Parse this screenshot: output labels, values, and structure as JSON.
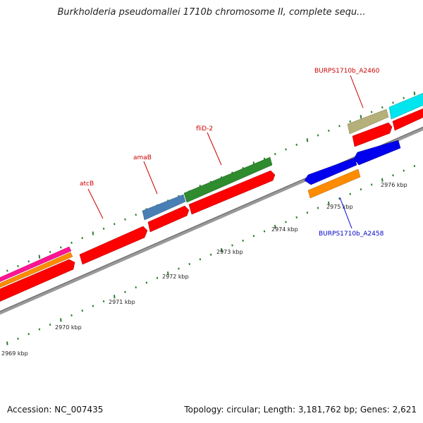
{
  "title": "Burkholderia pseudomallei 1710b chromosome II, complete sequ...",
  "footer": {
    "accession": "Accession: NC_007435",
    "summary": "Topology: circular; Length: 3,181,762 bp; Genes: 2,621"
  },
  "scale": {
    "tick_labels": [
      "2969 kbp",
      "2970 kbp",
      "2971 kbp",
      "2972 kbp",
      "2973 kbp",
      "2974 kbp",
      "2975 kbp",
      "2976 kbp"
    ],
    "tick_positions_kbp": [
      2969,
      2970,
      2971,
      2972,
      2973,
      2974,
      2975,
      2976
    ]
  },
  "gene_labels": [
    {
      "name": "atcB",
      "color": "#cc0000"
    },
    {
      "name": "amaB",
      "color": "#cc0000"
    },
    {
      "name": "fliD-2",
      "color": "#cc0000"
    },
    {
      "name": "BURPS1710b_A2460",
      "color": "#cc0000"
    },
    {
      "name": "BURPS1710b_A2458",
      "color": "#0000cc"
    }
  ],
  "colors": {
    "backbone": "#888888",
    "cds": "#ff0000",
    "tick": "#2e7d32",
    "tRNA_green": "#2e8b2e",
    "steelblue": "#4a7fb5",
    "khaki": "#b5b07a",
    "cyan": "#00e5ee",
    "blue": "#0000ee",
    "orange": "#ff8c00",
    "magenta": "#ff1493"
  }
}
